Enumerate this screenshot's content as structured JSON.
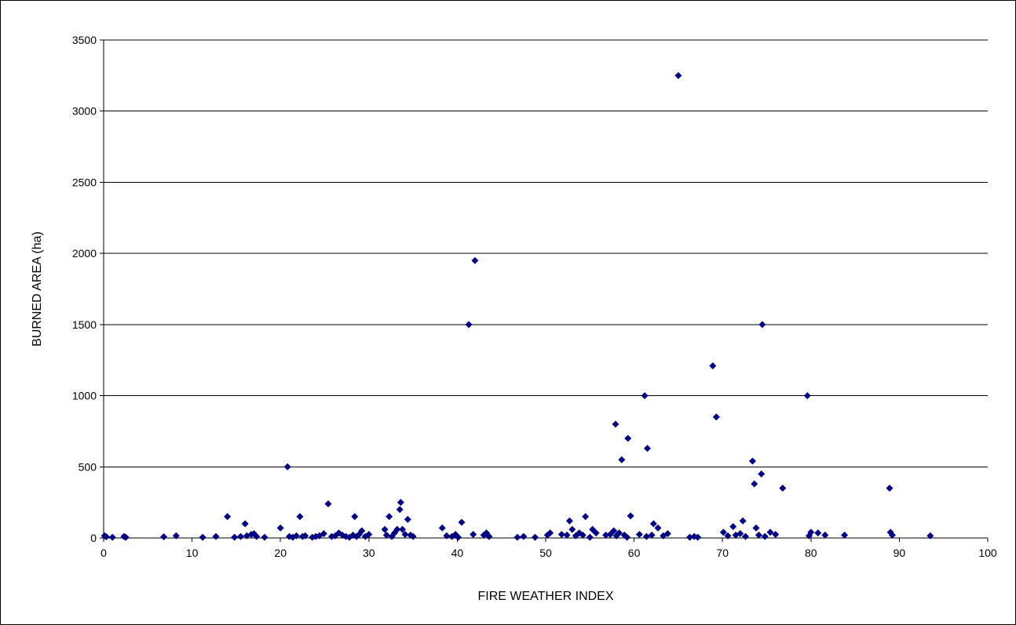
{
  "chart_data": {
    "type": "scatter",
    "title": "",
    "xlabel": "FIRE WEATHER INDEX",
    "ylabel": "BURNED AREA (ha)",
    "xlim": [
      0,
      100
    ],
    "ylim": [
      0,
      3500
    ],
    "xticks": [
      0,
      10,
      20,
      30,
      40,
      50,
      60,
      70,
      80,
      90,
      100
    ],
    "yticks": [
      0,
      500,
      1000,
      1500,
      2000,
      2500,
      3000,
      3500
    ],
    "grid": "horizontal",
    "legend": "none",
    "marker": "diamond",
    "marker_color": "#000080",
    "points": [
      [
        0.1,
        15
      ],
      [
        0.3,
        8
      ],
      [
        1.0,
        5
      ],
      [
        2.3,
        10
      ],
      [
        2.5,
        5
      ],
      [
        6.8,
        8
      ],
      [
        8.2,
        15
      ],
      [
        11.2,
        5
      ],
      [
        12.7,
        10
      ],
      [
        14.0,
        150
      ],
      [
        14.8,
        5
      ],
      [
        15.5,
        10
      ],
      [
        16.0,
        100
      ],
      [
        16.2,
        15
      ],
      [
        16.7,
        25
      ],
      [
        17.0,
        30
      ],
      [
        17.3,
        10
      ],
      [
        18.2,
        5
      ],
      [
        20.0,
        70
      ],
      [
        20.8,
        500
      ],
      [
        21.0,
        10
      ],
      [
        21.4,
        5
      ],
      [
        21.8,
        15
      ],
      [
        22.2,
        150
      ],
      [
        22.5,
        10
      ],
      [
        22.8,
        15
      ],
      [
        23.6,
        5
      ],
      [
        24.0,
        10
      ],
      [
        24.4,
        15
      ],
      [
        24.9,
        30
      ],
      [
        25.4,
        240
      ],
      [
        25.8,
        10
      ],
      [
        26.2,
        15
      ],
      [
        26.6,
        35
      ],
      [
        27.0,
        20
      ],
      [
        27.4,
        10
      ],
      [
        27.8,
        5
      ],
      [
        28.2,
        20
      ],
      [
        28.4,
        150
      ],
      [
        28.6,
        10
      ],
      [
        28.9,
        25
      ],
      [
        29.2,
        50
      ],
      [
        29.6,
        10
      ],
      [
        30.0,
        25
      ],
      [
        31.8,
        60
      ],
      [
        32.0,
        20
      ],
      [
        32.3,
        150
      ],
      [
        32.6,
        10
      ],
      [
        32.9,
        35
      ],
      [
        33.2,
        60
      ],
      [
        33.5,
        200
      ],
      [
        33.6,
        250
      ],
      [
        33.8,
        60
      ],
      [
        34.1,
        25
      ],
      [
        34.4,
        130
      ],
      [
        34.7,
        20
      ],
      [
        35.0,
        10
      ],
      [
        38.3,
        70
      ],
      [
        38.8,
        15
      ],
      [
        39.4,
        10
      ],
      [
        39.8,
        25
      ],
      [
        40.1,
        5
      ],
      [
        40.5,
        110
      ],
      [
        41.3,
        1500
      ],
      [
        41.8,
        25
      ],
      [
        42.0,
        1950
      ],
      [
        43.0,
        20
      ],
      [
        43.3,
        35
      ],
      [
        43.6,
        10
      ],
      [
        46.8,
        5
      ],
      [
        47.5,
        10
      ],
      [
        48.8,
        5
      ],
      [
        50.2,
        20
      ],
      [
        50.5,
        35
      ],
      [
        51.8,
        25
      ],
      [
        52.4,
        20
      ],
      [
        52.7,
        120
      ],
      [
        53.0,
        60
      ],
      [
        53.4,
        15
      ],
      [
        53.8,
        35
      ],
      [
        54.2,
        20
      ],
      [
        54.5,
        150
      ],
      [
        55.0,
        5
      ],
      [
        55.3,
        60
      ],
      [
        55.7,
        35
      ],
      [
        56.8,
        20
      ],
      [
        57.3,
        25
      ],
      [
        57.7,
        50
      ],
      [
        57.9,
        800
      ],
      [
        58.0,
        15
      ],
      [
        58.3,
        35
      ],
      [
        58.6,
        550
      ],
      [
        58.9,
        20
      ],
      [
        59.2,
        5
      ],
      [
        59.3,
        700
      ],
      [
        59.6,
        155
      ],
      [
        60.6,
        25
      ],
      [
        61.2,
        1000
      ],
      [
        61.4,
        10
      ],
      [
        61.5,
        630
      ],
      [
        62.0,
        20
      ],
      [
        62.2,
        100
      ],
      [
        62.7,
        70
      ],
      [
        63.3,
        15
      ],
      [
        63.8,
        30
      ],
      [
        65.0,
        3250
      ],
      [
        66.3,
        5
      ],
      [
        66.8,
        10
      ],
      [
        67.2,
        5
      ],
      [
        68.9,
        1210
      ],
      [
        69.3,
        850
      ],
      [
        70.1,
        40
      ],
      [
        70.6,
        15
      ],
      [
        71.2,
        80
      ],
      [
        71.5,
        20
      ],
      [
        72.0,
        30
      ],
      [
        72.3,
        120
      ],
      [
        72.6,
        10
      ],
      [
        73.4,
        540
      ],
      [
        73.6,
        380
      ],
      [
        73.8,
        70
      ],
      [
        74.1,
        20
      ],
      [
        74.4,
        450
      ],
      [
        74.5,
        1500
      ],
      [
        74.8,
        10
      ],
      [
        75.4,
        40
      ],
      [
        76.0,
        25
      ],
      [
        76.8,
        350
      ],
      [
        79.6,
        1000
      ],
      [
        79.8,
        15
      ],
      [
        80.0,
        40
      ],
      [
        80.8,
        35
      ],
      [
        81.6,
        20
      ],
      [
        83.8,
        20
      ],
      [
        88.9,
        350
      ],
      [
        89.0,
        40
      ],
      [
        89.2,
        20
      ],
      [
        93.5,
        15
      ]
    ]
  }
}
